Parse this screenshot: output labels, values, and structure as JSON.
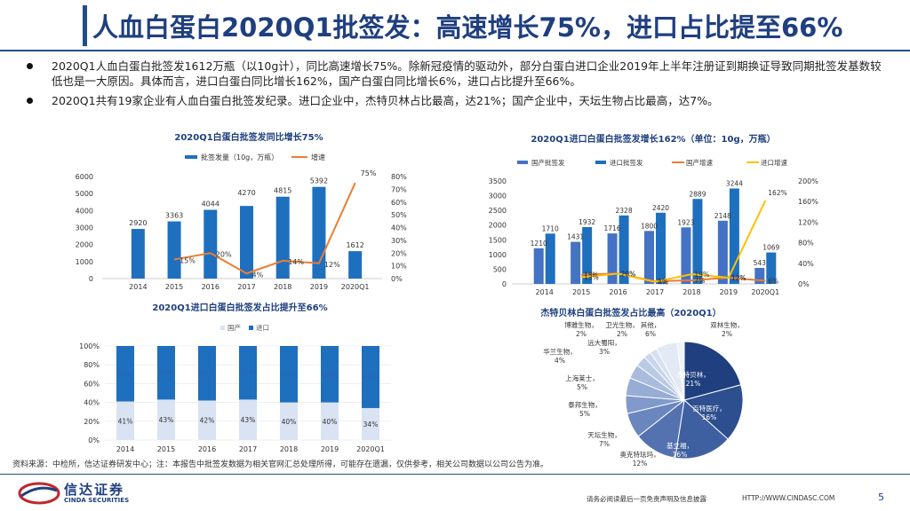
{
  "title": "人血白蛋白2020Q1批签发：高速增长75%，进口占比提至66%",
  "bullets": [
    "2020Q1人血白蛋白批签发1612万瓶（以10g计），同比高速增长75%。除新冠疫情的驱动外，部分白蛋白进口企业2019年上半年注册证到期换证导致同期批签发基数较低也是一大原因。具体而言，进口白蛋白同比增长162%，国产白蛋白同比增长6%，进口占比提升至66%。",
    "2020Q1共有19家企业有人血白蛋白批签发纪录。进口企业中，杰特贝林占比最高，达21%；国产企业中，天坛生物占比最高，达7%。"
  ],
  "colors": {
    "title": "#1F3F7F",
    "primary": "#1F6FBF",
    "dark_blue": "#1F4E79",
    "secondary": "#2E75B6",
    "orange": "#ED7D31",
    "yellow": "#FFC000",
    "light": "#DAE3F3",
    "light_blue_bar": "#4472C4"
  },
  "footer": {
    "source": "资料来源：中检所，信达证券研发中心；注：本报告中批签发数据为相关官网汇总处理所得，可能存在遗漏，仅供参考，相关公司数据以公司公告为准。",
    "logo_name": "信达证券",
    "logo_en": "CINDA SECURITIES",
    "disclaimer": "请务必阅读最后一页免责声明及信息披露",
    "website": "HTTP://WWW.CINDASC.COM",
    "page": "5"
  },
  "chart_data": [
    {
      "type": "bar+line",
      "title": "2020Q1白蛋白批签发同比增长75%",
      "categories": [
        "2014",
        "2015",
        "2016",
        "2017",
        "2018",
        "2019",
        "2020Q1"
      ],
      "series": [
        {
          "name": "批签发量（10g，万瓶）",
          "kind": "bar",
          "axis": "left",
          "values": [
            2920,
            3363,
            4044,
            4270,
            4815,
            5392,
            1612
          ],
          "labels": [
            "2920",
            "3363",
            "4044",
            "4270",
            "4815",
            "5392",
            "1612"
          ]
        },
        {
          "name": "增速",
          "kind": "line",
          "axis": "right",
          "values": [
            null,
            15,
            20,
            4,
            14,
            12,
            75
          ],
          "labels": [
            "",
            "15%",
            "20%",
            "4%",
            "14%",
            "12%",
            "75%"
          ]
        }
      ],
      "ylim_left": [
        0,
        6000
      ],
      "yticks_left": [
        "0",
        "1000",
        "2000",
        "3000",
        "4000",
        "5000",
        "6000"
      ],
      "ylim_right": [
        0,
        80
      ],
      "yticks_right": [
        "0%",
        "10%",
        "20%",
        "30%",
        "40%",
        "50%",
        "60%",
        "70%",
        "80%"
      ]
    },
    {
      "type": "bar+line",
      "title": "2020Q1进口白蛋白批签发增长162%（单位：10g，万瓶）",
      "categories": [
        "2014",
        "2015",
        "2016",
        "2017",
        "2018",
        "2019",
        "2020Q1"
      ],
      "series": [
        {
          "name": "国产批签发",
          "kind": "bar",
          "axis": "left",
          "values": [
            1210,
            1431,
            1716,
            1800,
            1923,
            2148,
            543
          ],
          "labels": [
            "1210",
            "1431",
            "1716",
            "1800",
            "1923",
            "2148",
            "543"
          ]
        },
        {
          "name": "进口批签发",
          "kind": "bar",
          "axis": "left",
          "values": [
            1710,
            1932,
            2328,
            2420,
            2889,
            3244,
            1069
          ],
          "labels": [
            "1710",
            "1932",
            "2328",
            "2420",
            "2889",
            "3244",
            "1069"
          ]
        },
        {
          "name": "国产增速",
          "kind": "line",
          "axis": "right",
          "values": [
            null,
            18,
            20,
            5,
            7,
            12,
            6
          ],
          "labels": [
            "",
            "18%",
            "20%",
            "5%",
            "7%",
            "12%",
            "6%"
          ]
        },
        {
          "name": "进口增速",
          "kind": "line",
          "axis": "right",
          "values": [
            null,
            13,
            20,
            4,
            19,
            12,
            162
          ],
          "labels": [
            "",
            "13%",
            "20%",
            "4%",
            "19%",
            "12%",
            "162%"
          ]
        }
      ],
      "ylim_left": [
        0,
        3500
      ],
      "yticks_left": [
        "0",
        "500",
        "1000",
        "1500",
        "2000",
        "2500",
        "3000",
        "3500"
      ],
      "ylim_right": [
        0,
        200
      ],
      "yticks_right": [
        "0%",
        "40%",
        "80%",
        "120%",
        "160%",
        "200%"
      ]
    },
    {
      "type": "stacked_bar_100",
      "title": "2020Q1进口白蛋白批签发占比提升至66%",
      "categories": [
        "2014",
        "2015",
        "2016",
        "2017",
        "2018",
        "2019",
        "2020Q1"
      ],
      "series": [
        {
          "name": "国产",
          "values": [
            41,
            43,
            42,
            43,
            40,
            40,
            34
          ],
          "labels": [
            "41%",
            "43%",
            "42%",
            "43%",
            "40%",
            "40%",
            "34%"
          ]
        },
        {
          "name": "进口",
          "values": [
            59,
            57,
            58,
            57,
            60,
            60,
            66
          ],
          "labels": [
            "59%",
            "57%",
            "58%",
            "57%",
            "60%",
            "60%",
            "66%"
          ]
        }
      ],
      "ylim": [
        0,
        100
      ],
      "yticks": [
        "0%",
        "20%",
        "40%",
        "60%",
        "80%",
        "100%"
      ]
    },
    {
      "type": "pie",
      "title": "杰特贝林白蛋白批签发占比最高（2020Q1）",
      "slices": [
        {
          "label": "杰特贝林，21%",
          "value": 21,
          "color": "#1F3F7F"
        },
        {
          "label": "百特医疗，16%",
          "value": 16,
          "color": "#2E4F8F"
        },
        {
          "label": "基立福，16%",
          "value": 16,
          "color": "#3F60A0"
        },
        {
          "label": "奥克特珐玛，12%",
          "value": 12,
          "color": "#5472B0"
        },
        {
          "label": "天坛生物，7%",
          "value": 7,
          "color": "#6A86BE"
        },
        {
          "label": "泰邦生物，5%",
          "value": 5,
          "color": "#8199CB"
        },
        {
          "label": "上海莱士，5%",
          "value": 5,
          "color": "#97ADD6"
        },
        {
          "label": "华兰生物，4%",
          "value": 4,
          "color": "#A9BCDE"
        },
        {
          "label": "远大蜀阳，3%",
          "value": 3,
          "color": "#BAC9E5"
        },
        {
          "label": "博雅生物，2%",
          "value": 2,
          "color": "#C9D5EB"
        },
        {
          "label": "卫光生物，2%",
          "value": 2,
          "color": "#D6E0F0"
        },
        {
          "label": "其他，6%",
          "value": 6,
          "color": "#E3EAF5"
        },
        {
          "label": "双林生物，2%",
          "value": 2,
          "color": "#EEF2F9"
        }
      ]
    }
  ]
}
